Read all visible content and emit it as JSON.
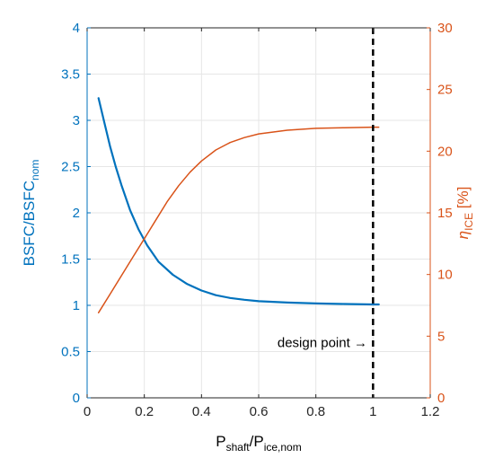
{
  "chart_data": {
    "type": "line",
    "x_axis": {
      "label_main": "P",
      "label_sub_1": "shaft",
      "label_mid": "/P",
      "label_sub_2": "ice,nom",
      "range": [
        0,
        1.2
      ],
      "ticks": [
        0,
        0.2,
        0.4,
        0.6,
        0.8,
        1,
        1.2
      ],
      "tick_labels": [
        "0",
        "0.2",
        "0.4",
        "0.6",
        "0.8",
        "1",
        "1.2"
      ]
    },
    "y_left_axis": {
      "label_main": "BSFC/BSFC",
      "label_sub": "nom",
      "range": [
        0,
        4
      ],
      "ticks": [
        0,
        0.5,
        1,
        1.5,
        2,
        2.5,
        3,
        3.5,
        4
      ],
      "tick_labels": [
        "0",
        "0.5",
        "1",
        "1.5",
        "2",
        "2.5",
        "3",
        "3.5",
        "4"
      ],
      "color": "#0072BD"
    },
    "y_right_axis": {
      "label_main": "η",
      "label_sub": "ICE",
      "label_unit": " [%]",
      "range": [
        0,
        30
      ],
      "ticks": [
        0,
        5,
        10,
        15,
        20,
        25,
        30
      ],
      "tick_labels": [
        "0",
        "5",
        "10",
        "15",
        "20",
        "25",
        "30"
      ],
      "color": "#D95319"
    },
    "grid": true,
    "series": [
      {
        "axis": "left",
        "color": "#0072BD",
        "x": [
          0.04,
          0.06,
          0.08,
          0.1,
          0.12,
          0.15,
          0.18,
          0.21,
          0.25,
          0.3,
          0.35,
          0.4,
          0.45,
          0.5,
          0.55,
          0.6,
          0.7,
          0.8,
          0.9,
          1.0,
          1.02
        ],
        "y": [
          3.24,
          2.98,
          2.72,
          2.5,
          2.3,
          2.03,
          1.82,
          1.65,
          1.47,
          1.33,
          1.23,
          1.16,
          1.11,
          1.08,
          1.06,
          1.045,
          1.03,
          1.02,
          1.015,
          1.01,
          1.01
        ]
      },
      {
        "axis": "right",
        "color": "#D95319",
        "x": [
          0.04,
          0.08,
          0.12,
          0.16,
          0.2,
          0.24,
          0.28,
          0.32,
          0.36,
          0.4,
          0.45,
          0.5,
          0.55,
          0.6,
          0.7,
          0.8,
          0.9,
          1.0,
          1.02
        ],
        "y": [
          6.9,
          8.4,
          9.9,
          11.4,
          12.9,
          14.4,
          15.9,
          17.2,
          18.3,
          19.2,
          20.1,
          20.7,
          21.1,
          21.4,
          21.7,
          21.85,
          21.9,
          21.95,
          21.95
        ]
      }
    ],
    "design_line": {
      "x": 1.0,
      "style": "dashed",
      "color": "#000000"
    },
    "annotation": {
      "text": "design point →",
      "x": 0.98,
      "y_left": 0.55
    }
  }
}
